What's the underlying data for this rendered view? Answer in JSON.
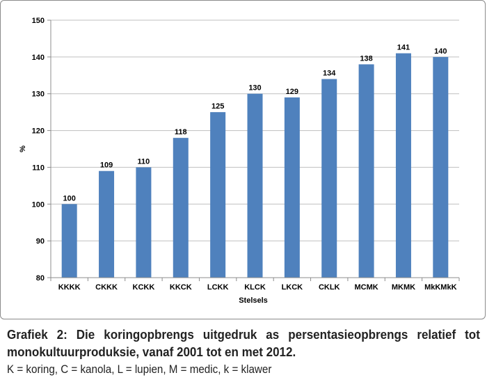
{
  "chart_data": {
    "type": "bar",
    "categories": [
      "KKKK",
      "CKKK",
      "KCKK",
      "KKCK",
      "LCKK",
      "KLCK",
      "LKCK",
      "CKLK",
      "MCMK",
      "MKMK",
      "MkKMkK"
    ],
    "values": [
      100,
      109,
      110,
      118,
      125,
      130,
      129,
      134,
      138,
      141,
      140
    ],
    "data_labels": [
      "100",
      "109",
      "110",
      "118",
      "125",
      "130",
      "129",
      "134",
      "138",
      "141",
      "140"
    ],
    "title": "",
    "xlabel": "Stelsels",
    "ylabel": "%",
    "ylim": [
      80,
      150
    ],
    "yticks": [
      80,
      90,
      100,
      110,
      120,
      130,
      140,
      150
    ],
    "grid": true,
    "legend": "none",
    "bar_color": "#4f81bd"
  },
  "caption": {
    "main": "Grafiek 2: Die koringopbrengs uitgedruk as persentasieopbrengs relatief tot monokultuurproduksie, vanaf 2001 tot en met 2012.",
    "legend": "K = koring, C = kanola, L = lupien, M = medic, k = klawer"
  }
}
